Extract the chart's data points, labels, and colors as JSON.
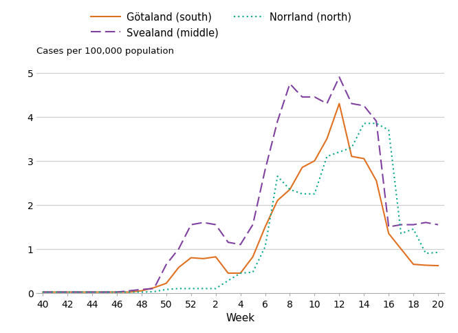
{
  "gotaland": [
    0.02,
    0.02,
    0.02,
    0.02,
    0.02,
    0.02,
    0.02,
    0.02,
    0.05,
    0.12,
    0.22,
    0.58,
    0.8,
    0.78,
    0.82,
    0.45,
    0.45,
    0.82,
    1.5,
    2.1,
    2.35,
    2.85,
    3.0,
    3.5,
    4.3,
    3.1,
    3.05,
    2.55,
    1.35,
    1.0,
    0.65,
    0.63,
    0.62
  ],
  "svealand": [
    0.02,
    0.02,
    0.02,
    0.02,
    0.02,
    0.02,
    0.02,
    0.05,
    0.08,
    0.1,
    0.65,
    1.0,
    1.55,
    1.6,
    1.55,
    1.15,
    1.1,
    1.55,
    2.8,
    3.9,
    4.75,
    4.45,
    4.45,
    4.3,
    4.9,
    4.3,
    4.25,
    3.9,
    1.5,
    1.55,
    1.55,
    1.6,
    1.55
  ],
  "norrland": [
    0.02,
    0.02,
    0.02,
    0.02,
    0.02,
    0.02,
    0.02,
    0.02,
    0.02,
    0.03,
    0.08,
    0.1,
    0.1,
    0.1,
    0.1,
    0.28,
    0.45,
    0.47,
    1.05,
    2.65,
    2.35,
    2.25,
    2.25,
    3.1,
    3.2,
    3.3,
    3.85,
    3.85,
    3.7,
    1.35,
    1.45,
    0.9,
    0.92
  ],
  "gotaland_color": "#E07020",
  "svealand_color": "#8040A0",
  "norrland_color": "#00A888",
  "ylabel": "Cases per 100,000 population",
  "xlabel": "Week",
  "ylim": [
    0,
    5
  ],
  "yticks": [
    0,
    1,
    2,
    3,
    4,
    5
  ],
  "xtick_labels": [
    "40",
    "42",
    "44",
    "46",
    "48",
    "50",
    "52",
    "2",
    "4",
    "6",
    "8",
    "10",
    "12",
    "14",
    "16",
    "18",
    "20"
  ],
  "legend_labels": [
    "Götaland (south)",
    "Svealand (middle)",
    "Norrland (north)"
  ]
}
